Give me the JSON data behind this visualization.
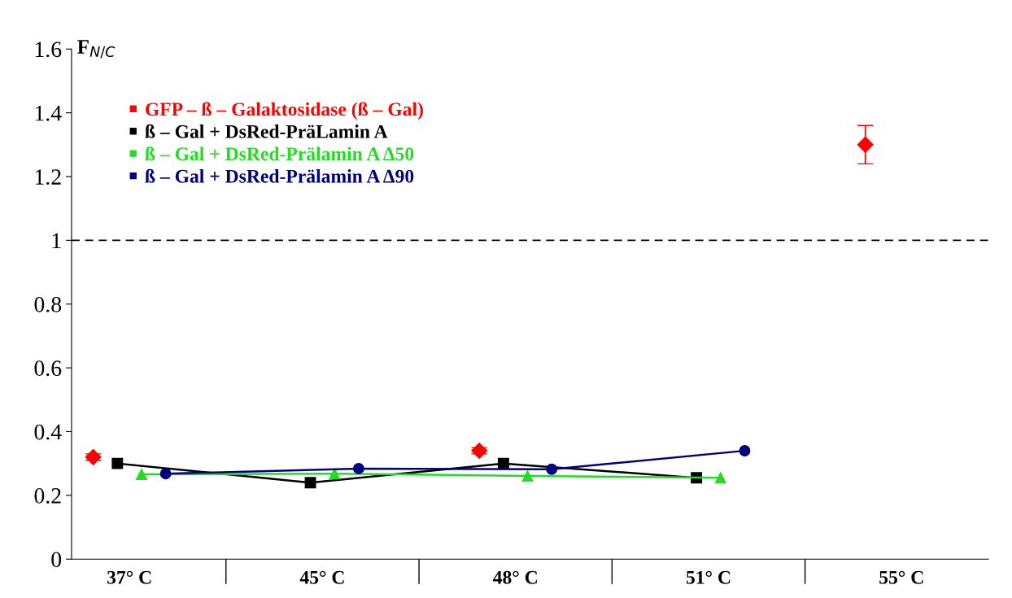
{
  "chart_data": {
    "type": "line",
    "ylabel": "F$_{N/C}$",
    "categories": [
      "37° C",
      "45° C",
      "48° C",
      "51° C",
      "55° C"
    ],
    "ylim": [
      0,
      1.6
    ],
    "yticks": [
      0,
      0.2,
      0.4,
      0.6,
      0.8,
      1,
      1.2,
      1.4,
      1.6
    ],
    "grid": false,
    "legend": "top left",
    "ref_lines": [
      {
        "axis": "y",
        "value": 1,
        "color": "#000000",
        "line_style": "dashed"
      }
    ],
    "series": [
      {
        "type": "scatter",
        "name": "GFP – ß – Galaktosidase (ß – Gal)",
        "color": "#ff0000",
        "marker": "diamond",
        "values": [
          0.32,
          null,
          0.34,
          null,
          1.3
        ],
        "errors": [
          0.01,
          null,
          0.01,
          null,
          0.06
        ]
      },
      {
        "name": "ß – Gal + DsRed-PräLamin A",
        "color": "#000000",
        "marker": "square",
        "values": [
          0.3,
          0.24,
          0.3,
          0.255,
          null
        ]
      },
      {
        "name": "ß – Gal + DsRed-Prälamin A Δ50",
        "color": "#22dd22",
        "marker": "triangle",
        "values": [
          0.266,
          0.268,
          0.261,
          0.255,
          null
        ]
      },
      {
        "name": "ß – Gal + DsRed-Prälamin A Δ90",
        "color": "#000080",
        "marker": "circle",
        "values": [
          0.268,
          0.284,
          0.282,
          0.34,
          null
        ]
      }
    ]
  }
}
